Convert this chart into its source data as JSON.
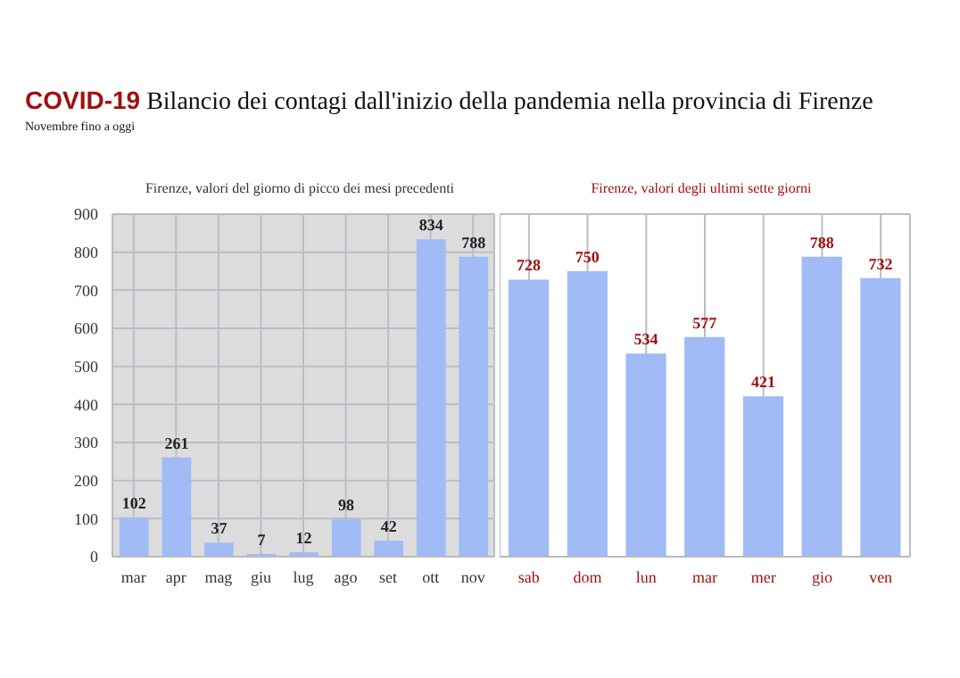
{
  "chart_data": [
    {
      "type": "bar",
      "title": "COVID-19 Bilancio dei contagi dall'inizio della pandemia nella provincia di Firenze",
      "subtitle": "Novembre fino a oggi",
      "annotations": [
        "Firenze, valori del giorno di picco dei mesi precedenti"
      ],
      "categories": [
        "mar",
        "apr",
        "mag",
        "giu",
        "lug",
        "ago",
        "set",
        "ott",
        "nov"
      ],
      "values": [
        102,
        261,
        37,
        7,
        12,
        98,
        42,
        834,
        788
      ],
      "color": "#a0bbf6",
      "ylim": [
        0,
        900
      ],
      "yticks": [
        0,
        100,
        200,
        300,
        400,
        500,
        600,
        700,
        800,
        900
      ],
      "grid": true,
      "data_labels": true
    },
    {
      "type": "bar",
      "annotations": [
        "Firenze, valori degli ultimi sette giorni"
      ],
      "categories": [
        "sab",
        "dom",
        "lun",
        "mar",
        "mer",
        "gio",
        "ven"
      ],
      "values": [
        728,
        750,
        534,
        577,
        421,
        788,
        732
      ],
      "color": "#a0bbf6",
      "ylim": [
        0,
        900
      ],
      "yticks": [
        0,
        100,
        200,
        300,
        400,
        500,
        600,
        700,
        800,
        900
      ],
      "tick_labels": "x",
      "grid": true,
      "data_labels": true
    }
  ]
}
